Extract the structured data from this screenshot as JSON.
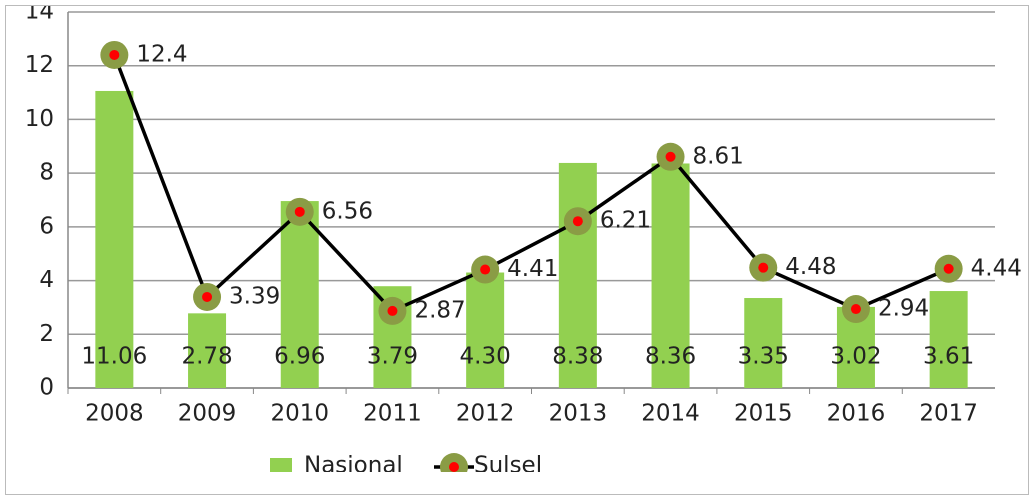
{
  "chart_data": {
    "type": "combo",
    "categories": [
      "2008",
      "2009",
      "2010",
      "2011",
      "2012",
      "2013",
      "2014",
      "2015",
      "2016",
      "2017"
    ],
    "series": [
      {
        "name": "Nasional",
        "type": "bar",
        "color": "#92d050",
        "values": [
          11.06,
          2.78,
          6.96,
          3.79,
          4.3,
          8.38,
          8.36,
          3.35,
          3.02,
          3.61
        ],
        "value_labels": [
          "11.06",
          "2.78",
          "6.96",
          "3.79",
          "4.30",
          "8.38",
          "8.36",
          "3.35",
          "3.02",
          "3.61"
        ]
      },
      {
        "name": "Sulsel",
        "type": "line",
        "color": "#000000",
        "marker_color": "#8a9c45",
        "marker_center_color": "#ff0000",
        "values": [
          12.4,
          3.39,
          6.56,
          2.87,
          4.41,
          6.21,
          8.61,
          4.48,
          2.94,
          4.44
        ]
      }
    ],
    "ylim": [
      0,
      14
    ],
    "yticks": [
      0,
      2,
      4,
      6,
      8,
      10,
      12,
      14
    ],
    "grid": true,
    "legend": "bottom"
  }
}
